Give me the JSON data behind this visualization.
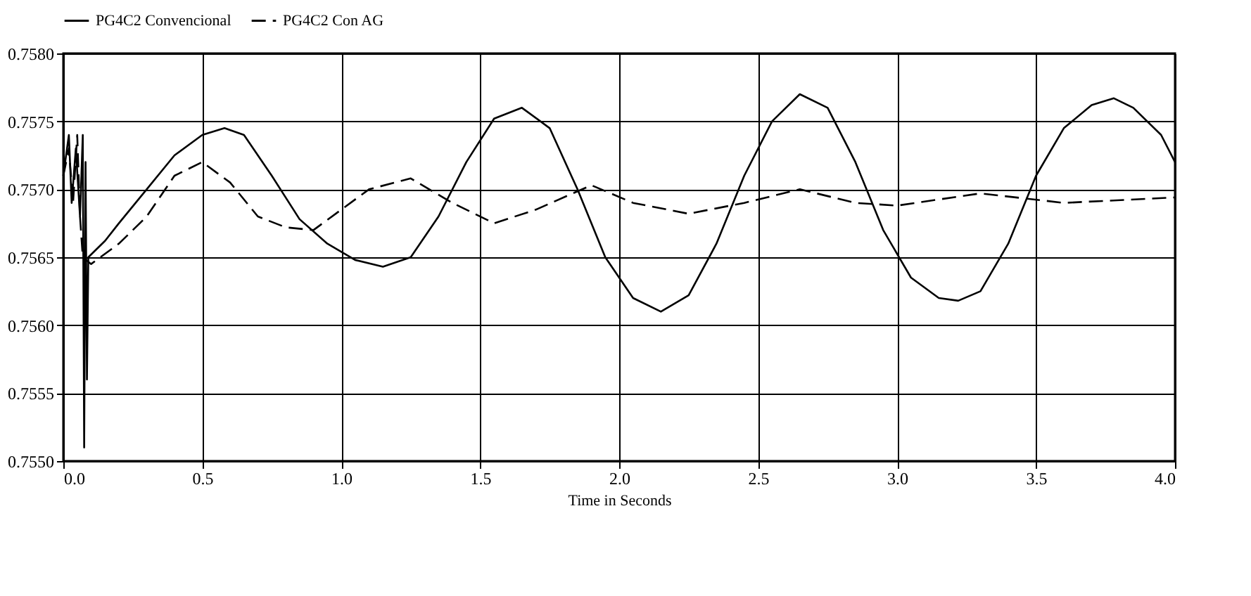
{
  "chart_data": {
    "type": "line",
    "xlabel": "Time in Seconds",
    "xlim": [
      0,
      4
    ],
    "xticks": [
      {
        "value": 0,
        "label": "0.0"
      },
      {
        "value": 0.5,
        "label": "0.5"
      },
      {
        "value": 1,
        "label": "1.0"
      },
      {
        "value": 1.5,
        "label": "1.5"
      },
      {
        "value": 2,
        "label": "2.0"
      },
      {
        "value": 2.5,
        "label": "2.5"
      },
      {
        "value": 3,
        "label": "3.0"
      },
      {
        "value": 3.5,
        "label": "3.5"
      },
      {
        "value": 4,
        "label": "4.0"
      }
    ],
    "ylim": [
      0.755,
      0.758
    ],
    "yticks": [
      {
        "value": 0.755,
        "label": "0.7550"
      },
      {
        "value": 0.7555,
        "label": "0.7555"
      },
      {
        "value": 0.756,
        "label": "0.7560"
      },
      {
        "value": 0.7565,
        "label": "0.7565"
      },
      {
        "value": 0.757,
        "label": "0.7570"
      },
      {
        "value": 0.7575,
        "label": "0.7575"
      },
      {
        "value": 0.758,
        "label": "0.7580"
      }
    ],
    "grid": true,
    "legend": "top",
    "series": [
      {
        "name": "PG4C2 Convencional",
        "color": "#000000",
        "line_style": "solid",
        "x": [
          0.0,
          0.02,
          0.03,
          0.045,
          0.06,
          0.07,
          0.075,
          0.08,
          0.085,
          0.09,
          0.15,
          0.2,
          0.3,
          0.4,
          0.5,
          0.58,
          0.65,
          0.75,
          0.85,
          0.95,
          1.05,
          1.15,
          1.25,
          1.35,
          1.45,
          1.55,
          1.65,
          1.75,
          1.85,
          1.95,
          2.05,
          2.15,
          2.25,
          2.35,
          2.45,
          2.55,
          2.65,
          2.75,
          2.85,
          2.95,
          3.05,
          3.15,
          3.22,
          3.3,
          3.4,
          3.5,
          3.6,
          3.7,
          3.78,
          3.85,
          3.95,
          4.0
        ],
        "values": [
          0.7571,
          0.7574,
          0.7569,
          0.7573,
          0.7568,
          0.7574,
          0.7551,
          0.7572,
          0.7556,
          0.7565,
          0.75662,
          0.75675,
          0.757,
          0.75725,
          0.7574,
          0.75745,
          0.7574,
          0.7571,
          0.75678,
          0.7566,
          0.75648,
          0.75643,
          0.7565,
          0.7568,
          0.7572,
          0.75752,
          0.7576,
          0.75745,
          0.757,
          0.7565,
          0.7562,
          0.7561,
          0.75622,
          0.7566,
          0.7571,
          0.7575,
          0.7577,
          0.7576,
          0.7572,
          0.7567,
          0.75635,
          0.7562,
          0.75618,
          0.75625,
          0.7566,
          0.7571,
          0.75745,
          0.75762,
          0.75767,
          0.7576,
          0.7574,
          0.7572
        ]
      },
      {
        "name": "PG4C2 Con AG",
        "color": "#000000",
        "line_style": "dashed",
        "x": [
          0.0,
          0.02,
          0.035,
          0.05,
          0.06,
          0.07,
          0.1,
          0.2,
          0.3,
          0.4,
          0.5,
          0.6,
          0.7,
          0.8,
          0.9,
          1.0,
          1.1,
          1.25,
          1.4,
          1.55,
          1.7,
          1.9,
          2.05,
          2.25,
          2.45,
          2.65,
          2.85,
          3.0,
          3.3,
          3.6,
          4.0
        ],
        "values": [
          0.7571,
          0.7573,
          0.7569,
          0.7574,
          0.7568,
          0.7565,
          0.75645,
          0.7566,
          0.7568,
          0.7571,
          0.7572,
          0.75705,
          0.7568,
          0.75672,
          0.7567,
          0.75685,
          0.757,
          0.75708,
          0.7569,
          0.75675,
          0.75685,
          0.75703,
          0.7569,
          0.75682,
          0.7569,
          0.757,
          0.7569,
          0.75688,
          0.75697,
          0.7569,
          0.75694
        ]
      }
    ]
  }
}
